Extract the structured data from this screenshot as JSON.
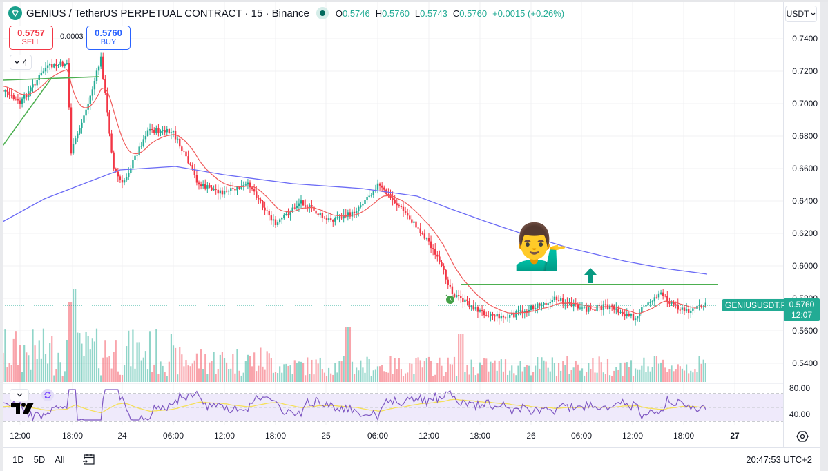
{
  "header": {
    "symbol_title": "GENIUS / TetherUS PERPETUAL CONTRACT · 15 · Binance",
    "ohlc": {
      "open_label": "O",
      "open": "0.5746",
      "high_label": "H",
      "high": "0.5760",
      "low_label": "L",
      "low": "0.5743",
      "close_label": "C",
      "close": "0.5760",
      "change": "+0.0015 (+0.26%)"
    }
  },
  "trade": {
    "sell_price": "0.5757",
    "sell_label": "SELL",
    "spread": "0.0003",
    "buy_price": "0.5760",
    "buy_label": "BUY"
  },
  "indicators_toggle": {
    "count": "4"
  },
  "currency_selector": {
    "label": "USDT"
  },
  "price_axis": {
    "ticks": [
      "0.7400",
      "0.7200",
      "0.7000",
      "0.6800",
      "0.6600",
      "0.6400",
      "0.6200",
      "0.6000",
      "0.5800",
      "0.5600",
      "0.5400"
    ]
  },
  "last_price": {
    "symbol": "GENIUSUSDT.P",
    "price": "0.5760",
    "countdown": "12:07"
  },
  "rsi_axis": {
    "upper": "80.00",
    "lower": "40.00"
  },
  "time_axis": {
    "labels": [
      "12:00",
      "18:00",
      "24",
      "06:00",
      "12:00",
      "18:00",
      "25",
      "06:00",
      "12:00",
      "18:00",
      "26",
      "06:00",
      "12:00",
      "18:00",
      "27"
    ]
  },
  "bottom_bar": {
    "ranges": [
      "1D",
      "5D",
      "All"
    ],
    "clock": "20:47:53 UTC+2"
  },
  "colors": {
    "up": "#22ab94",
    "down": "#f23645",
    "ema_fast": "#f05b5b",
    "ema_slow": "#6b6bf5",
    "trendline": "#4caf50",
    "rsi": "#7e57c2",
    "rsi_ma": "#f5e05a"
  },
  "chart_data": {
    "type": "candlestick",
    "title": "GENIUS / TetherUS PERPETUAL CONTRACT · 15 · Binance",
    "xlabel": "",
    "ylabel": "USDT",
    "ylim": [
      0.535,
      0.745
    ],
    "x_ticks": [
      "23 12:00",
      "23 18:00",
      "24",
      "24 06:00",
      "24 12:00",
      "24 18:00",
      "25",
      "25 06:00",
      "25 12:00",
      "25 18:00",
      "26",
      "26 06:00",
      "26 12:00",
      "26 18:00",
      "27"
    ],
    "approx_close_path": [
      {
        "t": "23 09:00",
        "price": 0.712
      },
      {
        "t": "23 12:00",
        "price": 0.7
      },
      {
        "t": "23 15:00",
        "price": 0.722
      },
      {
        "t": "23 17:30",
        "price": 0.725
      },
      {
        "t": "23 18:00",
        "price": 0.67
      },
      {
        "t": "23 20:00",
        "price": 0.7
      },
      {
        "t": "23 21:30",
        "price": 0.728
      },
      {
        "t": "23 23:00",
        "price": 0.66
      },
      {
        "t": "24 00:00",
        "price": 0.65
      },
      {
        "t": "24 03:00",
        "price": 0.684
      },
      {
        "t": "24 06:00",
        "price": 0.682
      },
      {
        "t": "24 09:00",
        "price": 0.65
      },
      {
        "t": "24 12:00",
        "price": 0.645
      },
      {
        "t": "24 15:00",
        "price": 0.65
      },
      {
        "t": "24 18:00",
        "price": 0.625
      },
      {
        "t": "24 21:00",
        "price": 0.64
      },
      {
        "t": "25 00:00",
        "price": 0.628
      },
      {
        "t": "25 03:00",
        "price": 0.632
      },
      {
        "t": "25 06:00",
        "price": 0.65
      },
      {
        "t": "25 09:00",
        "price": 0.634
      },
      {
        "t": "25 12:00",
        "price": 0.615
      },
      {
        "t": "25 15:00",
        "price": 0.582
      },
      {
        "t": "25 18:00",
        "price": 0.572
      },
      {
        "t": "25 21:00",
        "price": 0.568
      },
      {
        "t": "26 00:00",
        "price": 0.574
      },
      {
        "t": "26 03:00",
        "price": 0.58
      },
      {
        "t": "26 06:00",
        "price": 0.573
      },
      {
        "t": "26 09:00",
        "price": 0.575
      },
      {
        "t": "26 12:00",
        "price": 0.568
      },
      {
        "t": "26 15:00",
        "price": 0.583
      },
      {
        "t": "26 18:00",
        "price": 0.572
      },
      {
        "t": "26 20:45",
        "price": 0.576
      }
    ],
    "series": [
      {
        "name": "EMA fast (red)",
        "values_desc": "tracks price closely, ~0.700 → 0.650 → 0.628 → 0.643 → 0.575"
      },
      {
        "name": "EMA slow (blue)",
        "values_desc": "rises 0.628 → 0.662 at 24 06:00, then declines to 0.595 at 26 21:00"
      }
    ],
    "annotations": [
      {
        "type": "horizontal_line",
        "price": 0.588,
        "from": "25 15:00",
        "to": "26 21:00",
        "color": "#4caf50"
      },
      {
        "type": "trendline",
        "points": [
          [
            "23 09:00",
            0.679
          ],
          [
            "23 14:00",
            0.718
          ]
        ],
        "color": "#4caf50"
      },
      {
        "type": "horizontal_line",
        "price": 0.7165,
        "from": "23 09:00",
        "to": "23 20:00",
        "color": "#4caf50"
      },
      {
        "type": "icon",
        "name": "person-tipping-hand-emoji",
        "near_price": 0.6
      },
      {
        "type": "arrow-up",
        "price": 0.593,
        "color": "#089981"
      },
      {
        "type": "alert",
        "price": 0.573
      }
    ],
    "last_price": 0.576,
    "volume": {
      "peak_time": "23 18:00",
      "desc": "high volume on day 23, tapering afterwards"
    },
    "rsi": {
      "upper_band": 70,
      "mid": 50,
      "lower_band": 30,
      "axis_labels": [
        80,
        40
      ]
    },
    "grid": true,
    "legend_position": "top-left"
  }
}
